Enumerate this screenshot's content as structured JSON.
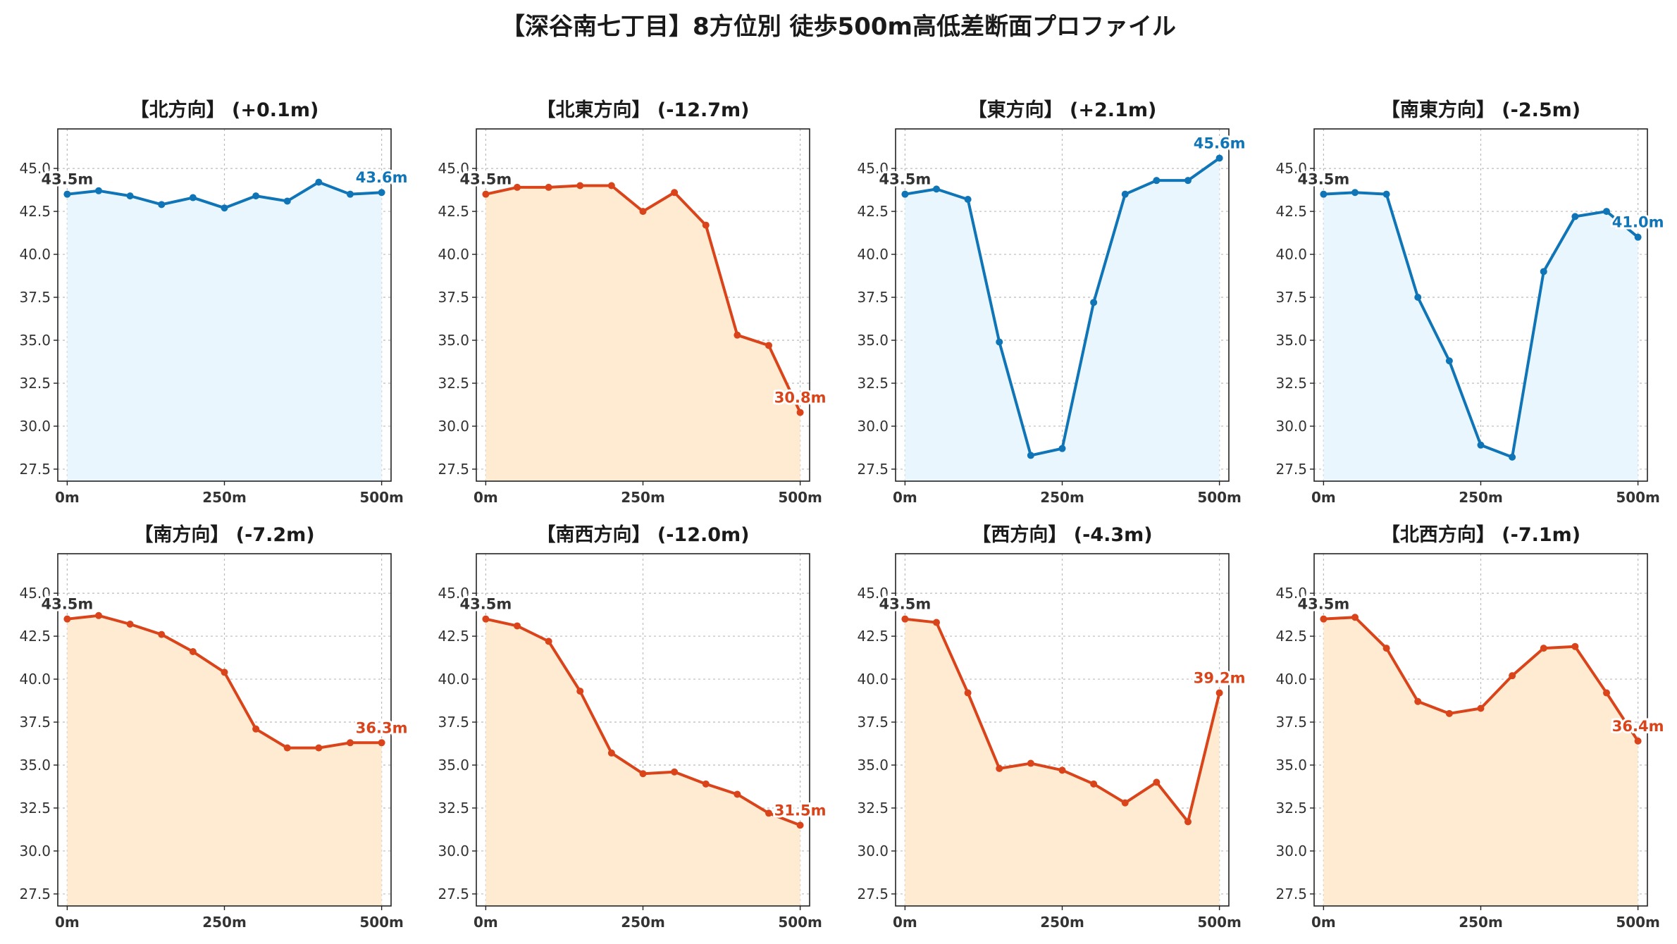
{
  "title": "【深谷南七丁目】8方位別 徒歩500m高低差断面プロファイル",
  "colors": {
    "up_line": "#0f75b6",
    "up_fill": "#e9f6fd",
    "down_line": "#d9441a",
    "down_fill": "#feebd2",
    "grid": "#bbbbbb",
    "axis": "#222222"
  },
  "chart_data": [
    {
      "type": "line",
      "title": "【北方向】 (+0.1m)",
      "trend": "up",
      "start_label": "43.5m",
      "end_label": "43.6m",
      "x": [
        0,
        50,
        100,
        150,
        200,
        250,
        300,
        350,
        400,
        450,
        500
      ],
      "y": [
        43.5,
        43.7,
        43.4,
        42.9,
        43.3,
        42.7,
        43.4,
        43.1,
        44.2,
        43.5,
        43.6
      ],
      "xticks": [
        "0m",
        "250m",
        "500m"
      ],
      "yticks": [
        "27.5",
        "30.0",
        "32.5",
        "35.0",
        "37.5",
        "40.0",
        "42.5",
        "45.0"
      ],
      "xlim": [
        -15,
        515
      ],
      "ylim": [
        26.8,
        47.3
      ],
      "grid": true
    },
    {
      "type": "line",
      "title": "【北東方向】 (-12.7m)",
      "trend": "down",
      "start_label": "43.5m",
      "end_label": "30.8m",
      "x": [
        0,
        50,
        100,
        150,
        200,
        250,
        300,
        350,
        400,
        450,
        500
      ],
      "y": [
        43.5,
        43.9,
        43.9,
        44.0,
        44.0,
        42.5,
        43.6,
        41.7,
        35.3,
        34.7,
        30.8
      ],
      "xticks": [
        "0m",
        "250m",
        "500m"
      ],
      "yticks": [
        "27.5",
        "30.0",
        "32.5",
        "35.0",
        "37.5",
        "40.0",
        "42.5",
        "45.0"
      ],
      "xlim": [
        -15,
        515
      ],
      "ylim": [
        26.8,
        47.3
      ],
      "grid": true
    },
    {
      "type": "line",
      "title": "【東方向】 (+2.1m)",
      "trend": "up",
      "start_label": "43.5m",
      "end_label": "45.6m",
      "x": [
        0,
        50,
        100,
        150,
        200,
        250,
        300,
        350,
        400,
        450,
        500
      ],
      "y": [
        43.5,
        43.8,
        43.2,
        34.9,
        28.3,
        28.7,
        37.2,
        43.5,
        44.3,
        44.3,
        45.6
      ],
      "xticks": [
        "0m",
        "250m",
        "500m"
      ],
      "yticks": [
        "27.5",
        "30.0",
        "32.5",
        "35.0",
        "37.5",
        "40.0",
        "42.5",
        "45.0"
      ],
      "xlim": [
        -15,
        515
      ],
      "ylim": [
        26.8,
        47.3
      ],
      "grid": true
    },
    {
      "type": "line",
      "title": "【南東方向】 (-2.5m)",
      "trend": "down_blue",
      "start_label": "43.5m",
      "end_label": "41.0m",
      "x": [
        0,
        50,
        100,
        150,
        200,
        250,
        300,
        350,
        400,
        450,
        500
      ],
      "y": [
        43.5,
        43.6,
        43.5,
        37.5,
        33.8,
        28.9,
        28.2,
        39.0,
        42.2,
        42.5,
        41.0
      ],
      "xticks": [
        "0m",
        "250m",
        "500m"
      ],
      "yticks": [
        "27.5",
        "30.0",
        "32.5",
        "35.0",
        "37.5",
        "40.0",
        "42.5",
        "45.0"
      ],
      "xlim": [
        -15,
        515
      ],
      "ylim": [
        26.8,
        47.3
      ],
      "grid": true
    },
    {
      "type": "line",
      "title": "【南方向】 (-7.2m)",
      "trend": "down",
      "start_label": "43.5m",
      "end_label": "36.3m",
      "x": [
        0,
        50,
        100,
        150,
        200,
        250,
        300,
        350,
        400,
        450,
        500
      ],
      "y": [
        43.5,
        43.7,
        43.2,
        42.6,
        41.6,
        40.4,
        37.1,
        36.0,
        36.0,
        36.3,
        36.3
      ],
      "xticks": [
        "0m",
        "250m",
        "500m"
      ],
      "yticks": [
        "27.5",
        "30.0",
        "32.5",
        "35.0",
        "37.5",
        "40.0",
        "42.5",
        "45.0"
      ],
      "xlim": [
        -15,
        515
      ],
      "ylim": [
        26.8,
        47.3
      ],
      "grid": true
    },
    {
      "type": "line",
      "title": "【南西方向】 (-12.0m)",
      "trend": "down",
      "start_label": "43.5m",
      "end_label": "31.5m",
      "x": [
        0,
        50,
        100,
        150,
        200,
        250,
        300,
        350,
        400,
        450,
        500
      ],
      "y": [
        43.5,
        43.1,
        42.2,
        39.3,
        35.7,
        34.5,
        34.6,
        33.9,
        33.3,
        32.2,
        31.5
      ],
      "xticks": [
        "0m",
        "250m",
        "500m"
      ],
      "yticks": [
        "27.5",
        "30.0",
        "32.5",
        "35.0",
        "37.5",
        "40.0",
        "42.5",
        "45.0"
      ],
      "xlim": [
        -15,
        515
      ],
      "ylim": [
        26.8,
        47.3
      ],
      "grid": true
    },
    {
      "type": "line",
      "title": "【西方向】 (-4.3m)",
      "trend": "down",
      "start_label": "43.5m",
      "end_label": "39.2m",
      "x": [
        0,
        50,
        100,
        150,
        200,
        250,
        300,
        350,
        400,
        450,
        500
      ],
      "y": [
        43.5,
        43.3,
        39.2,
        34.8,
        35.1,
        34.7,
        33.9,
        32.8,
        34.0,
        31.7,
        39.2
      ],
      "xticks": [
        "0m",
        "250m",
        "500m"
      ],
      "yticks": [
        "27.5",
        "30.0",
        "32.5",
        "35.0",
        "37.5",
        "40.0",
        "42.5",
        "45.0"
      ],
      "xlim": [
        -15,
        515
      ],
      "ylim": [
        26.8,
        47.3
      ],
      "grid": true
    },
    {
      "type": "line",
      "title": "【北西方向】 (-7.1m)",
      "trend": "down",
      "start_label": "43.5m",
      "end_label": "36.4m",
      "x": [
        0,
        50,
        100,
        150,
        200,
        250,
        300,
        350,
        400,
        450,
        500
      ],
      "y": [
        43.5,
        43.6,
        41.8,
        38.7,
        38.0,
        38.3,
        40.2,
        41.8,
        41.9,
        39.2,
        36.4
      ],
      "xticks": [
        "0m",
        "250m",
        "500m"
      ],
      "yticks": [
        "27.5",
        "30.0",
        "32.5",
        "35.0",
        "37.5",
        "40.0",
        "42.5",
        "45.0"
      ],
      "xlim": [
        -15,
        515
      ],
      "ylim": [
        26.8,
        47.3
      ],
      "grid": true
    }
  ]
}
